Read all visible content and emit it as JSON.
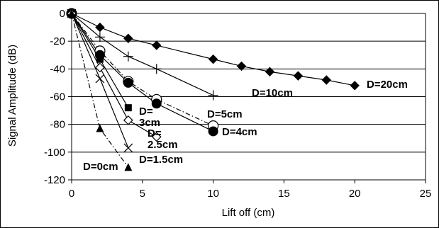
{
  "chart_data": {
    "type": "line",
    "title": "",
    "xlabel": "Lift off (cm)",
    "ylabel": "Signal Amplitude (dB)",
    "xlim": [
      0,
      25
    ],
    "ylim": [
      -120,
      0
    ],
    "xticks": [
      "0",
      "5",
      "10",
      "15",
      "20",
      "25"
    ],
    "yticks": [
      "0",
      "-20",
      "-40",
      "-60",
      "-80",
      "-100",
      "-120"
    ],
    "grid": "horizontal",
    "legend": "none",
    "series": [
      {
        "name": "D=20cm",
        "marker": "diamond-filled",
        "dash": "solid",
        "x": [
          0,
          2,
          4,
          6,
          10,
          12,
          14,
          16,
          18,
          20
        ],
        "y": [
          0,
          -10,
          -18,
          -23,
          -33,
          -38,
          -42,
          -45,
          -48,
          -52
        ]
      },
      {
        "name": "D=10cm",
        "marker": "plus",
        "dash": "solid",
        "x": [
          0,
          2,
          4,
          6,
          10
        ],
        "y": [
          0,
          -17,
          -31,
          -40,
          -59
        ]
      },
      {
        "name": "D=5cm",
        "marker": "circle-open",
        "dash": "dashdot",
        "x": [
          0,
          2,
          4,
          6,
          10
        ],
        "y": [
          0,
          -27,
          -49,
          -62,
          -81
        ]
      },
      {
        "name": "D=4cm",
        "marker": "circle-filled",
        "dash": "solid",
        "x": [
          0,
          2,
          4,
          6,
          10
        ],
        "y": [
          0,
          -30,
          -50,
          -65,
          -85
        ]
      },
      {
        "name": "D=3cm",
        "marker": "square-filled",
        "dash": "solid",
        "x": [
          0,
          2,
          4
        ],
        "y": [
          0,
          -33,
          -68
        ]
      },
      {
        "name": "D=2.5cm",
        "marker": "diamond-open",
        "dash": "solid",
        "x": [
          0,
          2,
          4,
          6
        ],
        "y": [
          0,
          -39,
          -77,
          -89
        ]
      },
      {
        "name": "D=1.5cm",
        "marker": "x",
        "dash": "solid",
        "x": [
          0,
          2,
          4
        ],
        "y": [
          0,
          -47,
          -97
        ]
      },
      {
        "name": "D=0cm",
        "marker": "triangle-filled",
        "dash": "dashdot",
        "x": [
          0,
          2,
          4
        ],
        "y": [
          0,
          -83,
          -111
        ]
      }
    ],
    "labels": [
      {
        "series": "D=20cm",
        "lines": [
          "D=20cm"
        ]
      },
      {
        "series": "D=10cm",
        "lines": [
          "D=10cm"
        ]
      },
      {
        "series": "D=5cm",
        "lines": [
          "D=5cm"
        ]
      },
      {
        "series": "D=4cm",
        "lines": [
          "D=4cm"
        ]
      },
      {
        "series": "D=3cm",
        "lines": [
          "D=",
          "3cm"
        ]
      },
      {
        "series": "D=2.5cm",
        "lines": [
          "D=",
          "2.5cm"
        ]
      },
      {
        "series": "D=1.5cm",
        "lines": [
          "D=1.5cm"
        ]
      },
      {
        "series": "D=0cm",
        "lines": [
          "D=0cm"
        ]
      }
    ]
  }
}
